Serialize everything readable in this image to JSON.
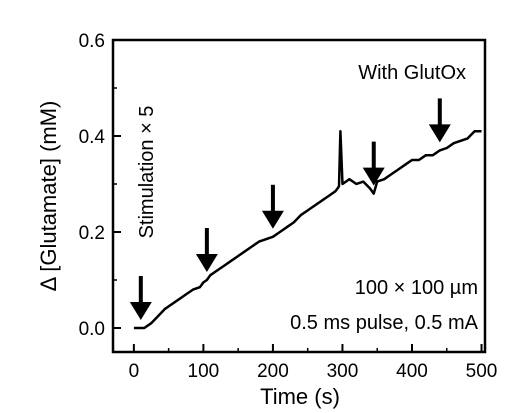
{
  "chart_data": {
    "type": "line",
    "xlabel": "Time (s)",
    "ylabel": "Δ [Glutamate] (mM)",
    "xlim": [
      -30,
      505
    ],
    "ylim": [
      -0.05,
      0.6
    ],
    "xticks": [
      0,
      100,
      200,
      300,
      400,
      500
    ],
    "xtick_labels": [
      "0",
      "100",
      "200",
      "300",
      "400",
      "500"
    ],
    "yticks": [
      0.0,
      0.2,
      0.4,
      0.6
    ],
    "ytick_labels": [
      "0.0",
      "0.2",
      "0.4",
      "0.6"
    ],
    "grid": false,
    "series": [
      {
        "x": [
          0,
          15,
          25,
          35,
          45,
          55,
          65,
          75,
          85,
          95,
          100,
          105,
          110,
          120,
          130,
          140,
          150,
          160,
          170,
          180,
          190,
          200,
          210,
          220,
          230,
          240,
          250,
          260,
          270,
          280,
          290,
          295,
          297,
          300,
          305,
          310,
          320,
          330,
          340,
          345,
          350,
          360,
          370,
          380,
          390,
          400,
          410,
          420,
          430,
          440,
          450,
          460,
          470,
          480,
          490,
          500
        ],
        "values": [
          0.0,
          0.0,
          0.01,
          0.025,
          0.04,
          0.05,
          0.06,
          0.07,
          0.08,
          0.085,
          0.095,
          0.1,
          0.11,
          0.12,
          0.13,
          0.14,
          0.15,
          0.16,
          0.17,
          0.18,
          0.185,
          0.19,
          0.2,
          0.21,
          0.22,
          0.235,
          0.245,
          0.255,
          0.265,
          0.275,
          0.285,
          0.295,
          0.41,
          0.3,
          0.305,
          0.31,
          0.3,
          0.305,
          0.29,
          0.28,
          0.305,
          0.31,
          0.32,
          0.33,
          0.34,
          0.35,
          0.35,
          0.36,
          0.36,
          0.37,
          0.375,
          0.385,
          0.39,
          0.395,
          0.41,
          0.41
        ]
      }
    ],
    "stimulation_times": [
      10,
      105,
      200,
      345,
      440
    ],
    "annotations": {
      "stimulation": "Stimulation × 5",
      "condition": "With GlutOx",
      "area": "100 × 100 µm",
      "pulse": "0.5 ms pulse, 0.5 mA"
    }
  }
}
